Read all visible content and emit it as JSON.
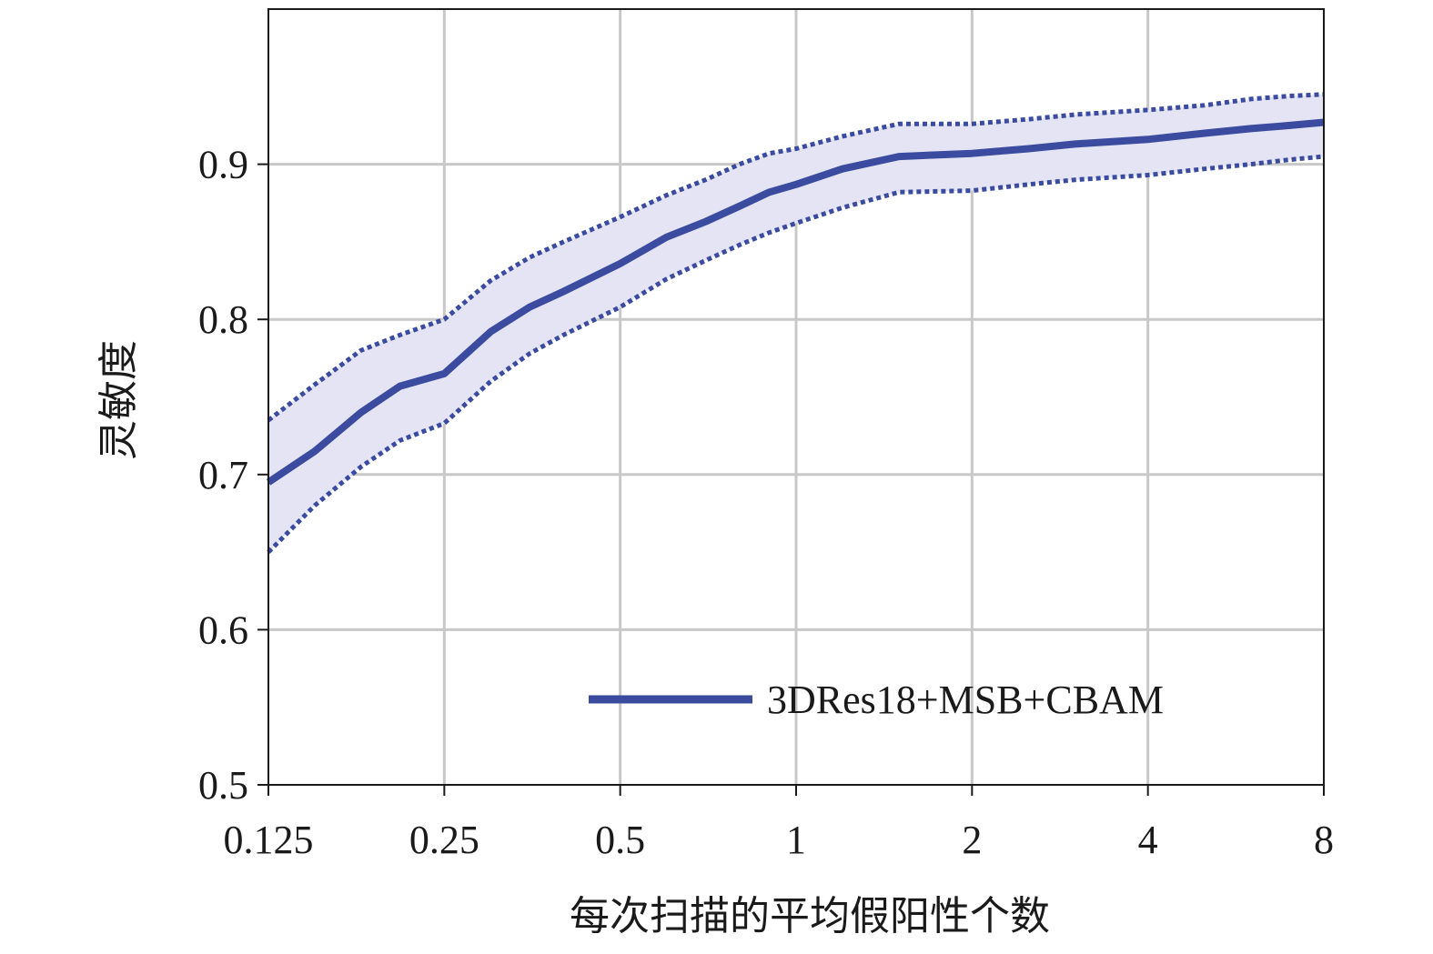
{
  "chart_data": {
    "type": "line",
    "xlabel": "每次扫描的平均假阳性个数",
    "ylabel": "灵敏度",
    "x_scale": "log2",
    "xlim": [
      0.125,
      8
    ],
    "ylim": [
      0.5,
      1.0
    ],
    "x_ticks": [
      {
        "value": 0.125,
        "label": "0.125"
      },
      {
        "value": 0.25,
        "label": "0.25"
      },
      {
        "value": 0.5,
        "label": "0.5"
      },
      {
        "value": 1,
        "label": "1"
      },
      {
        "value": 2,
        "label": "2"
      },
      {
        "value": 4,
        "label": "4"
      },
      {
        "value": 8,
        "label": "8"
      }
    ],
    "y_ticks": [
      {
        "value": 0.5,
        "label": "0.5"
      },
      {
        "value": 0.6,
        "label": "0.6"
      },
      {
        "value": 0.7,
        "label": "0.7"
      },
      {
        "value": 0.8,
        "label": "0.8"
      },
      {
        "value": 0.9,
        "label": "0.9"
      }
    ],
    "grid": true,
    "legend": {
      "position": "bottom-right",
      "entries": [
        "3DRes18+MSB+CBAM"
      ]
    },
    "colors": {
      "line": "#3a4ba0",
      "band": "#e4e4f5",
      "grid": "#c8c8c8"
    },
    "series": [
      {
        "name": "3DRes18+MSB+CBAM",
        "x": [
          0.125,
          0.15,
          0.18,
          0.21,
          0.25,
          0.3,
          0.35,
          0.4,
          0.5,
          0.6,
          0.7,
          0.8,
          0.9,
          1,
          1.2,
          1.5,
          2,
          2.5,
          3,
          4,
          5,
          6,
          7,
          8
        ],
        "y": [
          0.695,
          0.715,
          0.74,
          0.757,
          0.765,
          0.792,
          0.808,
          0.818,
          0.836,
          0.853,
          0.863,
          0.873,
          0.882,
          0.887,
          0.897,
          0.905,
          0.907,
          0.91,
          0.913,
          0.916,
          0.92,
          0.923,
          0.925,
          0.927
        ],
        "upper": [
          0.735,
          0.758,
          0.78,
          0.79,
          0.8,
          0.825,
          0.84,
          0.85,
          0.866,
          0.88,
          0.89,
          0.9,
          0.907,
          0.91,
          0.918,
          0.926,
          0.926,
          0.929,
          0.932,
          0.935,
          0.938,
          0.942,
          0.944,
          0.945
        ],
        "lower": [
          0.65,
          0.68,
          0.705,
          0.722,
          0.733,
          0.76,
          0.778,
          0.79,
          0.808,
          0.826,
          0.838,
          0.848,
          0.856,
          0.862,
          0.872,
          0.882,
          0.883,
          0.887,
          0.89,
          0.893,
          0.897,
          0.9,
          0.903,
          0.905
        ]
      }
    ]
  }
}
